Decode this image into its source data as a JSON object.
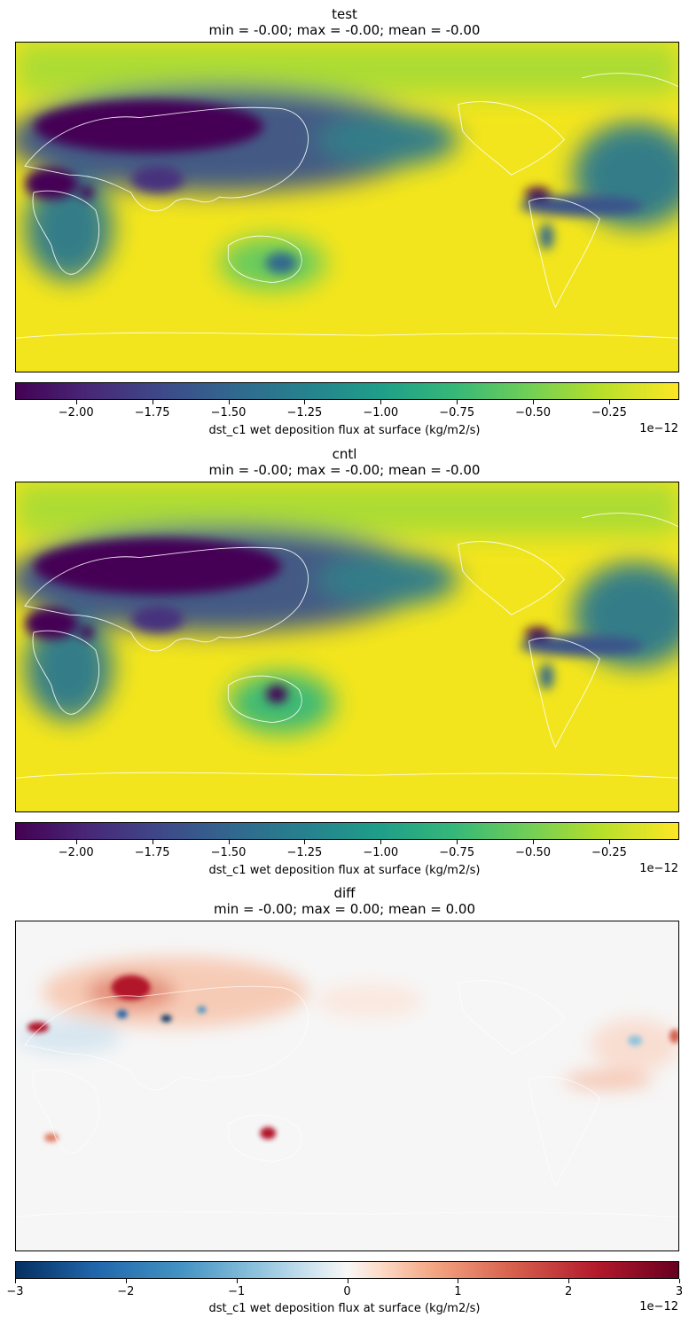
{
  "chart_data": [
    {
      "type": "heatmap",
      "title": "test",
      "subtitle": "min = -0.00; max = -0.00; mean = -0.00",
      "colormap": "viridis",
      "colorbar": {
        "label": "dst_c1 wet deposition flux at surface (kg/m2/s)",
        "offset": "1e−12",
        "range": [
          -2.2,
          -0.02
        ],
        "ticks": [
          -2.0,
          -1.75,
          -1.5,
          -1.25,
          -1.0,
          -0.75,
          -0.5,
          -0.25
        ],
        "tick_labels": [
          "−2.00",
          "−1.75",
          "−1.50",
          "−1.25",
          "−1.00",
          "−0.75",
          "−0.50",
          "−0.25"
        ]
      }
    },
    {
      "type": "heatmap",
      "title": "cntl",
      "subtitle": "min = -0.00; max = -0.00; mean = -0.00",
      "colormap": "viridis",
      "colorbar": {
        "label": "dst_c1 wet deposition flux at surface (kg/m2/s)",
        "offset": "1e−12",
        "range": [
          -2.2,
          -0.02
        ],
        "ticks": [
          -2.0,
          -1.75,
          -1.5,
          -1.25,
          -1.0,
          -0.75,
          -0.5,
          -0.25
        ],
        "tick_labels": [
          "−2.00",
          "−1.75",
          "−1.50",
          "−1.25",
          "−1.00",
          "−0.75",
          "−0.50",
          "−0.25"
        ]
      }
    },
    {
      "type": "heatmap",
      "title": "diff",
      "subtitle": "min = -0.00; max = 0.00; mean = 0.00",
      "colormap": "RdBu_r",
      "colorbar": {
        "label": "dst_c1 wet deposition flux at surface (kg/m2/s)",
        "offset": "1e−12",
        "range": [
          -3,
          3
        ],
        "ticks": [
          -3,
          -2,
          -1,
          0,
          1,
          2,
          3
        ],
        "tick_labels": [
          "−3",
          "−2",
          "−1",
          "0",
          "1",
          "2",
          "3"
        ]
      }
    }
  ]
}
